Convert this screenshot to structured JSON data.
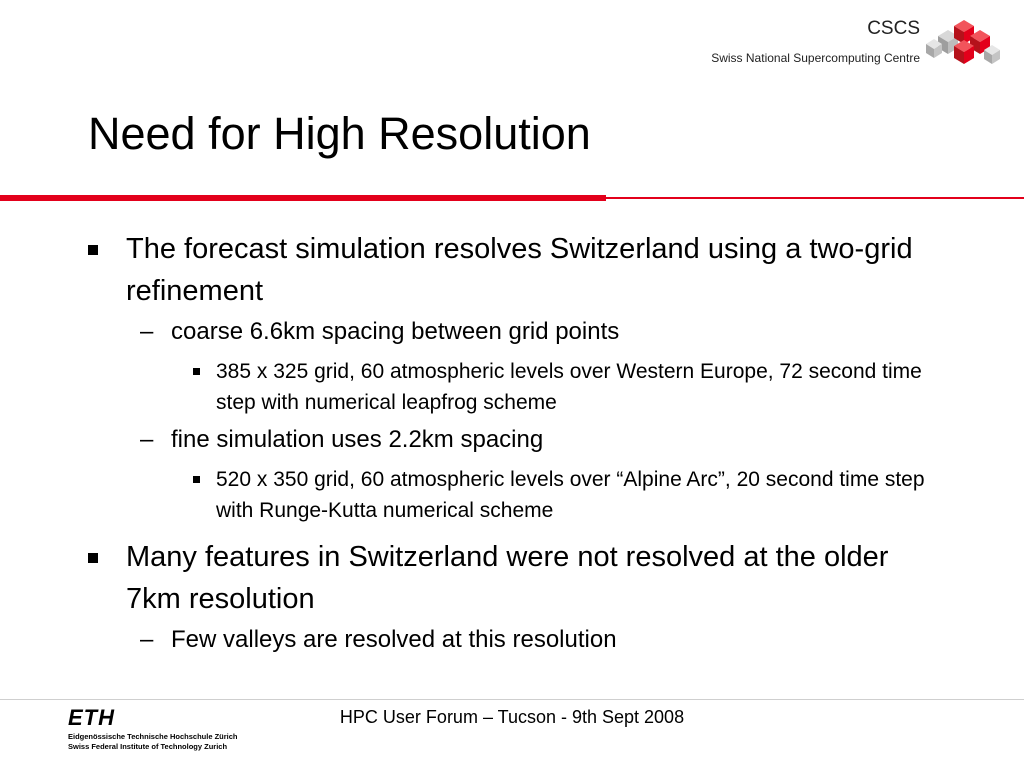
{
  "header": {
    "org_short": "CSCS",
    "org_full": "Swiss National Supercomputing Centre",
    "logo_icon": "red-grey-cubes-logo",
    "accent_color": "#e3001b"
  },
  "slide": {
    "title": "Need for High Resolution",
    "bullets": [
      {
        "text": "The forecast simulation resolves Switzerland using a two-grid refinement",
        "sub": [
          {
            "text": "coarse 6.6km spacing between grid points",
            "sub": [
              "385 x 325 grid, 60 atmospheric levels over Western Europe, 72 second time step with numerical leapfrog scheme"
            ]
          },
          {
            "text": "fine simulation uses 2.2km spacing",
            "sub": [
              "520 x 350 grid, 60 atmospheric levels over “Alpine Arc”, 20 second time step with Runge-Kutta numerical scheme"
            ]
          }
        ]
      },
      {
        "text": "Many features in Switzerland were not resolved at the older 7km resolution",
        "sub": [
          {
            "text": "Few valleys are resolved at this resolution",
            "sub": []
          }
        ]
      }
    ]
  },
  "footer": {
    "eth_mark": "ETH",
    "eth_line1": "Eidgenössische Technische Hochschule Zürich",
    "eth_line2": "Swiss Federal Institute of Technology Zurich",
    "event": "HPC User Forum – Tucson - 9th Sept 2008"
  }
}
